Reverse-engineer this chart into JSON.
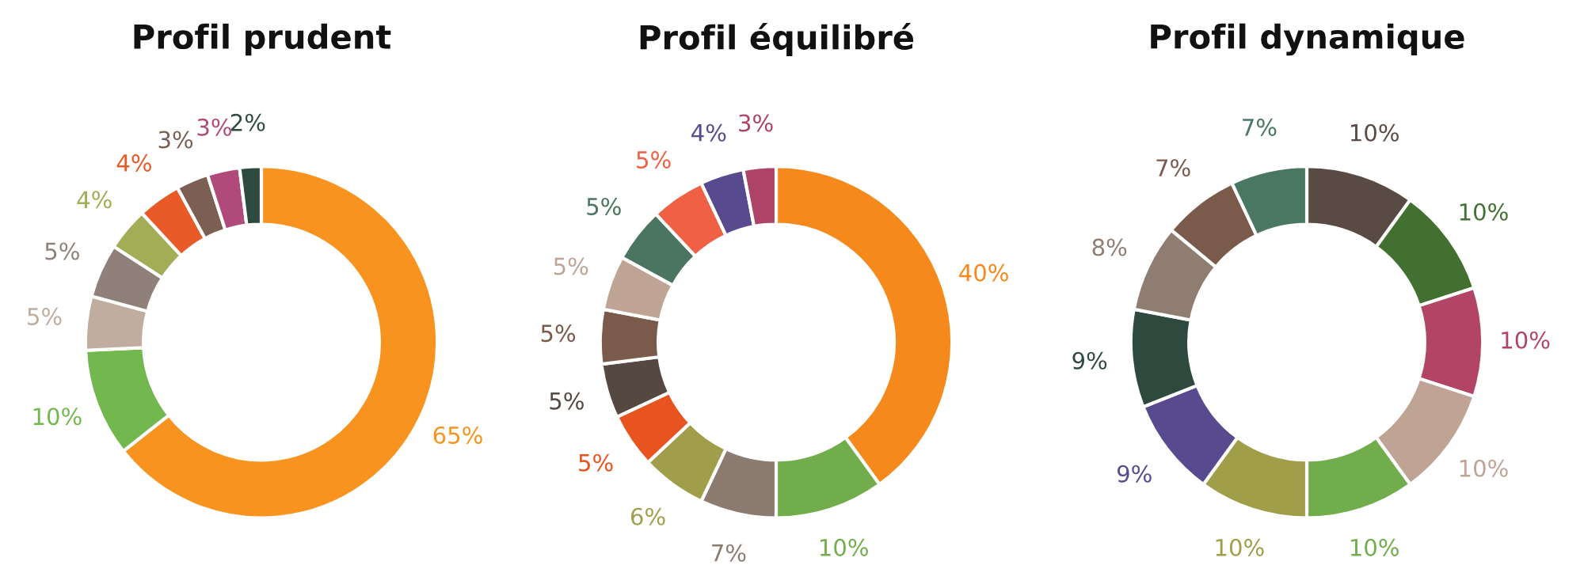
{
  "chart_data": [
    {
      "type": "donut",
      "title": "Profil prudent",
      "categories": [
        null,
        null,
        null,
        null,
        null,
        null,
        null,
        null,
        null
      ],
      "values": [
        65,
        10,
        5,
        5,
        4,
        4,
        3,
        3,
        2
      ],
      "value_labels": [
        "65%",
        "10%",
        "5%",
        "5%",
        "4%",
        "4%",
        "3%",
        "3%",
        "2%"
      ],
      "colors": [
        "#f7931e",
        "#72b84f",
        "#c0ada0",
        "#8f8079",
        "#a2ad55",
        "#e85a27",
        "#7a5f52",
        "#b04a7a",
        "#2e4a40"
      ]
    },
    {
      "type": "donut",
      "title": "Profil équilibré",
      "categories": [
        null,
        null,
        null,
        null,
        null,
        null,
        null,
        null,
        null,
        null,
        null,
        null
      ],
      "values": [
        40,
        10,
        7,
        6,
        5,
        5,
        5,
        5,
        5,
        5,
        4,
        3
      ],
      "value_labels": [
        "40%",
        "10%",
        "7%",
        "6%",
        "5%",
        "5%",
        "5%",
        "5%",
        "5%",
        "5%",
        "4%",
        "3%"
      ],
      "colors": [
        "#f5891b",
        "#72ad4c",
        "#8c7b70",
        "#a09e4a",
        "#e8531f",
        "#554841",
        "#7a5b4b",
        "#bfa394",
        "#4a7560",
        "#ef6045",
        "#574a8e",
        "#ad4366"
      ]
    },
    {
      "type": "donut",
      "title": "Profil dynamique",
      "categories": [
        null,
        null,
        null,
        null,
        null,
        null,
        null,
        null,
        null,
        null,
        null
      ],
      "values": [
        10,
        10,
        10,
        10,
        10,
        10,
        9,
        9,
        8,
        7,
        7
      ],
      "value_labels": [
        "10%",
        "10%",
        "10%",
        "10%",
        "10%",
        "10%",
        "9%",
        "9%",
        "8%",
        "7%",
        "7%"
      ],
      "colors": [
        "#594a43",
        "#417030",
        "#b24466",
        "#bfa394",
        "#71ad4c",
        "#a19e4a",
        "#574a8e",
        "#2e4a3e",
        "#8f7d72",
        "#7a5b4b",
        "#4a7762"
      ]
    }
  ]
}
